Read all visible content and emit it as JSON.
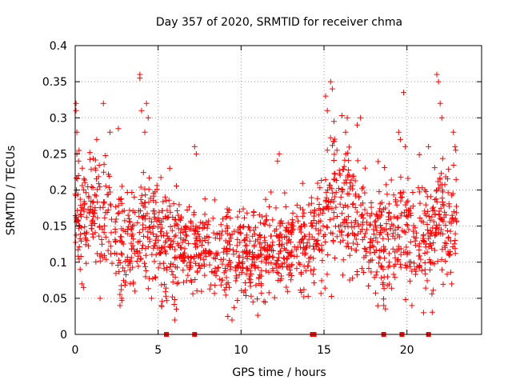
{
  "chart_data": {
    "type": "scatter",
    "title": "Day 357 of 2020, SRMTID for receiver chma",
    "xlabel": "GPS time / hours",
    "ylabel": "SRMTID / TECUs",
    "xlim": [
      0,
      24.5
    ],
    "ylim": [
      0,
      0.4
    ],
    "x_ticks": [
      0,
      5,
      10,
      15,
      20
    ],
    "x_tick_labels": [
      "0",
      "5",
      "10",
      "15",
      "20"
    ],
    "y_ticks": [
      0,
      0.05,
      0.1,
      0.15,
      0.2,
      0.25,
      0.3,
      0.35,
      0.4
    ],
    "y_tick_labels": [
      "0",
      "0.05",
      "0.1",
      "0.15",
      "0.2",
      "0.25",
      "0.3",
      "0.35",
      "0.4"
    ],
    "grid": true,
    "marker": "+",
    "color": "#ff0000",
    "data_gap_markers_x": [
      5.5,
      7.2,
      14.3,
      14.4,
      18.6,
      19.7,
      21.3
    ],
    "trend": [
      {
        "x": 0.0,
        "y": 0.17
      },
      {
        "x": 0.5,
        "y": 0.16
      },
      {
        "x": 1.0,
        "y": 0.17
      },
      {
        "x": 1.5,
        "y": 0.17
      },
      {
        "x": 2.0,
        "y": 0.16
      },
      {
        "x": 2.5,
        "y": 0.13
      },
      {
        "x": 3.0,
        "y": 0.13
      },
      {
        "x": 3.5,
        "y": 0.13
      },
      {
        "x": 4.0,
        "y": 0.15
      },
      {
        "x": 4.5,
        "y": 0.15
      },
      {
        "x": 5.0,
        "y": 0.14
      },
      {
        "x": 6.0,
        "y": 0.12
      },
      {
        "x": 7.0,
        "y": 0.12
      },
      {
        "x": 8.0,
        "y": 0.12
      },
      {
        "x": 9.0,
        "y": 0.11
      },
      {
        "x": 10.0,
        "y": 0.11
      },
      {
        "x": 11.0,
        "y": 0.11
      },
      {
        "x": 12.0,
        "y": 0.12
      },
      {
        "x": 13.0,
        "y": 0.12
      },
      {
        "x": 14.0,
        "y": 0.13
      },
      {
        "x": 15.0,
        "y": 0.16
      },
      {
        "x": 15.5,
        "y": 0.19
      },
      {
        "x": 16.0,
        "y": 0.19
      },
      {
        "x": 17.0,
        "y": 0.17
      },
      {
        "x": 18.0,
        "y": 0.13
      },
      {
        "x": 19.0,
        "y": 0.13
      },
      {
        "x": 20.0,
        "y": 0.15
      },
      {
        "x": 21.0,
        "y": 0.13
      },
      {
        "x": 22.0,
        "y": 0.16
      },
      {
        "x": 23.0,
        "y": 0.16
      }
    ],
    "points": [
      {
        "x": 0.05,
        "y": 0.32
      },
      {
        "x": 0.05,
        "y": 0.31
      },
      {
        "x": 0.1,
        "y": 0.28
      },
      {
        "x": 0.1,
        "y": 0.25
      },
      {
        "x": 0.2,
        "y": 0.24
      },
      {
        "x": 0.2,
        "y": 0.22
      },
      {
        "x": 0.3,
        "y": 0.09
      },
      {
        "x": 0.4,
        "y": 0.07
      },
      {
        "x": 0.5,
        "y": 0.065
      },
      {
        "x": 1.3,
        "y": 0.27
      },
      {
        "x": 1.7,
        "y": 0.32
      },
      {
        "x": 2.1,
        "y": 0.28
      },
      {
        "x": 2.6,
        "y": 0.285
      },
      {
        "x": 2.7,
        "y": 0.04
      },
      {
        "x": 2.8,
        "y": 0.05
      },
      {
        "x": 1.5,
        "y": 0.05
      },
      {
        "x": 3.6,
        "y": 0.06
      },
      {
        "x": 3.5,
        "y": 0.07
      },
      {
        "x": 3.9,
        "y": 0.36
      },
      {
        "x": 3.9,
        "y": 0.355
      },
      {
        "x": 4.0,
        "y": 0.31
      },
      {
        "x": 4.3,
        "y": 0.32
      },
      {
        "x": 4.4,
        "y": 0.3
      },
      {
        "x": 4.2,
        "y": 0.28
      },
      {
        "x": 4.6,
        "y": 0.05
      },
      {
        "x": 5.2,
        "y": 0.04
      },
      {
        "x": 5.7,
        "y": 0.23
      },
      {
        "x": 6.0,
        "y": 0.02
      },
      {
        "x": 6.1,
        "y": 0.035
      },
      {
        "x": 7.2,
        "y": 0.26
      },
      {
        "x": 7.3,
        "y": 0.25
      },
      {
        "x": 9.2,
        "y": 0.025
      },
      {
        "x": 12.3,
        "y": 0.25
      },
      {
        "x": 12.2,
        "y": 0.24
      },
      {
        "x": 15.4,
        "y": 0.35
      },
      {
        "x": 15.5,
        "y": 0.34
      },
      {
        "x": 15.2,
        "y": 0.31
      },
      {
        "x": 15.1,
        "y": 0.33
      },
      {
        "x": 15.6,
        "y": 0.295
      },
      {
        "x": 16.4,
        "y": 0.3
      },
      {
        "x": 16.3,
        "y": 0.28
      },
      {
        "x": 17.0,
        "y": 0.29
      },
      {
        "x": 17.2,
        "y": 0.3
      },
      {
        "x": 18.6,
        "y": 0.04
      },
      {
        "x": 19.5,
        "y": 0.28
      },
      {
        "x": 19.6,
        "y": 0.27
      },
      {
        "x": 19.8,
        "y": 0.335
      },
      {
        "x": 19.9,
        "y": 0.26
      },
      {
        "x": 21.0,
        "y": 0.03
      },
      {
        "x": 21.3,
        "y": 0.26
      },
      {
        "x": 21.8,
        "y": 0.36
      },
      {
        "x": 21.9,
        "y": 0.35
      },
      {
        "x": 22.0,
        "y": 0.32
      },
      {
        "x": 22.1,
        "y": 0.3
      },
      {
        "x": 22.8,
        "y": 0.28
      },
      {
        "x": 22.9,
        "y": 0.26
      },
      {
        "x": 22.7,
        "y": 0.07
      },
      {
        "x": 20.3,
        "y": 0.04
      }
    ]
  }
}
